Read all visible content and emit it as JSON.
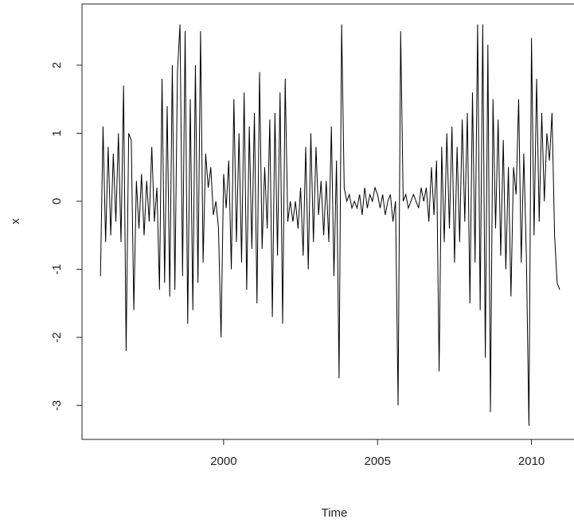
{
  "chart_data": {
    "type": "line",
    "xlabel": "Time",
    "ylabel": "x",
    "color": "#000000",
    "x": [
      1996,
      1996.0833,
      1996.1667,
      1996.25,
      1996.3333,
      1996.4167,
      1996.5,
      1996.5833,
      1996.6667,
      1996.75,
      1996.8333,
      1996.9167,
      1997,
      1997.0833,
      1997.1667,
      1997.25,
      1997.3333,
      1997.4167,
      1997.5,
      1997.5833,
      1997.6667,
      1997.75,
      1997.8333,
      1997.9167,
      1998,
      1998.0833,
      1998.1667,
      1998.25,
      1998.3333,
      1998.4167,
      1998.5,
      1998.5833,
      1998.6667,
      1998.75,
      1998.8333,
      1998.9167,
      1999,
      1999.0833,
      1999.1667,
      1999.25,
      1999.3333,
      1999.4167,
      1999.5,
      1999.5833,
      1999.6667,
      1999.75,
      1999.8333,
      1999.9167,
      2000,
      2000.0833,
      2000.1667,
      2000.25,
      2000.3333,
      2000.4167,
      2000.5,
      2000.5833,
      2000.6667,
      2000.75,
      2000.8333,
      2000.9167,
      2001,
      2001.0833,
      2001.1667,
      2001.25,
      2001.3333,
      2001.4167,
      2001.5,
      2001.5833,
      2001.6667,
      2001.75,
      2001.8333,
      2001.9167,
      2002,
      2002.0833,
      2002.1667,
      2002.25,
      2002.3333,
      2002.4167,
      2002.5,
      2002.5833,
      2002.6667,
      2002.75,
      2002.8333,
      2002.9167,
      2003,
      2003.0833,
      2003.1667,
      2003.25,
      2003.3333,
      2003.4167,
      2003.5,
      2003.5833,
      2003.6667,
      2003.75,
      2003.8333,
      2003.9167,
      2004,
      2004.0833,
      2004.1667,
      2004.25,
      2004.3333,
      2004.4167,
      2004.5,
      2004.5833,
      2004.6667,
      2004.75,
      2004.8333,
      2004.9167,
      2005,
      2005.0833,
      2005.1667,
      2005.25,
      2005.3333,
      2005.4167,
      2005.5,
      2005.5833,
      2005.6667,
      2005.75,
      2005.8333,
      2005.9167,
      2006,
      2006.0833,
      2006.1667,
      2006.25,
      2006.3333,
      2006.4167,
      2006.5,
      2006.5833,
      2006.6667,
      2006.75,
      2006.8333,
      2006.9167,
      2007,
      2007.0833,
      2007.1667,
      2007.25,
      2007.3333,
      2007.4167,
      2007.5,
      2007.5833,
      2007.6667,
      2007.75,
      2007.8333,
      2007.9167,
      2008,
      2008.0833,
      2008.1667,
      2008.25,
      2008.3333,
      2008.4167,
      2008.5,
      2008.5833,
      2008.6667,
      2008.75,
      2008.8333,
      2008.9167,
      2009,
      2009.0833,
      2009.1667,
      2009.25,
      2009.3333,
      2009.4167,
      2009.5,
      2009.5833,
      2009.6667,
      2009.75,
      2009.8333,
      2009.9167,
      2010,
      2010.0833,
      2010.1667,
      2010.25,
      2010.3333,
      2010.4167,
      2010.5,
      2010.5833,
      2010.6667,
      2010.75,
      2010.8333,
      2010.9167
    ],
    "values": [
      -1.1,
      1.1,
      -0.6,
      0.8,
      -0.5,
      0.7,
      -0.3,
      1.0,
      -0.6,
      1.7,
      -2.2,
      1.0,
      0.9,
      -1.6,
      0.3,
      -0.4,
      0.4,
      -0.5,
      0.3,
      -0.3,
      0.8,
      -0.3,
      0.2,
      -1.3,
      1.8,
      -1.2,
      1.4,
      -1.4,
      2.0,
      -1.3,
      1.9,
      2.6,
      -1.1,
      2.5,
      -1.8,
      1.5,
      -1.6,
      2.0,
      -1.2,
      2.5,
      -0.9,
      0.7,
      0.2,
      0.5,
      -0.2,
      0.0,
      -0.4,
      -2.0,
      0.4,
      -0.1,
      0.6,
      -1.0,
      1.5,
      -0.6,
      1.0,
      -0.9,
      1.6,
      -1.3,
      1.1,
      -0.7,
      1.3,
      -1.5,
      1.9,
      -0.7,
      0.5,
      -0.4,
      1.2,
      -1.7,
      1.3,
      -0.8,
      1.6,
      -1.8,
      1.8,
      -0.3,
      0.0,
      -0.3,
      0.0,
      -0.4,
      0.2,
      -0.8,
      0.8,
      -1.0,
      1.0,
      -0.6,
      0.8,
      -0.2,
      0.3,
      -0.5,
      0.3,
      -0.6,
      1.1,
      -1.1,
      0.6,
      -2.6,
      2.6,
      0.2,
      0.0,
      0.1,
      -0.1,
      0.0,
      -0.1,
      0.1,
      -0.2,
      0.2,
      -0.1,
      0.1,
      0.0,
      0.2,
      0.1,
      -0.1,
      0.1,
      -0.2,
      0.0,
      0.1,
      -0.3,
      0.0,
      -3.0,
      2.5,
      0.0,
      0.1,
      -0.1,
      0.0,
      0.1,
      0.0,
      -0.1,
      0.2,
      0.0,
      0.2,
      -0.3,
      0.5,
      -0.2,
      0.6,
      -2.5,
      0.8,
      -0.6,
      1.0,
      -0.4,
      1.1,
      -0.9,
      0.8,
      -0.6,
      1.2,
      -0.3,
      1.3,
      -1.5,
      1.6,
      -0.9,
      2.6,
      -1.6,
      2.6,
      -2.3,
      2.3,
      -3.1,
      1.5,
      -0.4,
      1.2,
      -0.8,
      0.9,
      -1.0,
      0.5,
      -1.4,
      0.5,
      0.1,
      1.5,
      -0.9,
      0.7,
      -0.8,
      -3.3,
      2.4,
      -0.5,
      1.8,
      -0.3,
      1.3,
      0.0,
      1.0,
      0.6,
      1.3,
      -0.5,
      -1.2,
      -1.3
    ],
    "xlim": [
      1995.4,
      2011.51
    ],
    "xticks": [
      2000,
      2005,
      2010
    ],
    "ylim": [
      -3.5,
      2.9
    ],
    "yticks": [
      -3,
      -2,
      -1,
      0,
      1,
      2
    ]
  }
}
